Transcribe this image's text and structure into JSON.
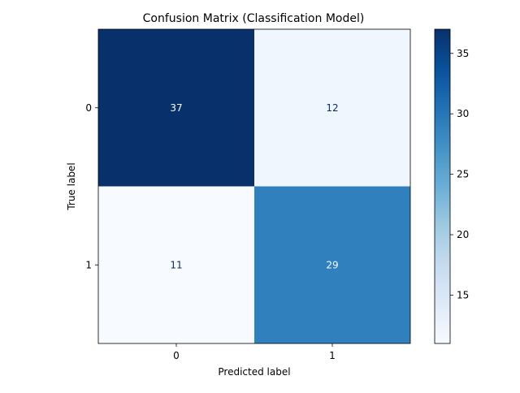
{
  "chart_data": {
    "type": "heatmap",
    "title": "Confusion Matrix (Classification Model)",
    "xlabel": "Predicted label",
    "ylabel": "True label",
    "x_categories": [
      "0",
      "1"
    ],
    "y_categories": [
      "0",
      "1"
    ],
    "values": [
      [
        37,
        12
      ],
      [
        11,
        29
      ]
    ],
    "colormap": "Blues",
    "color_range": [
      11,
      37
    ],
    "colorbar_ticks": [
      15,
      20,
      25,
      30,
      35
    ],
    "grid": false,
    "colorbar_position": "right"
  }
}
